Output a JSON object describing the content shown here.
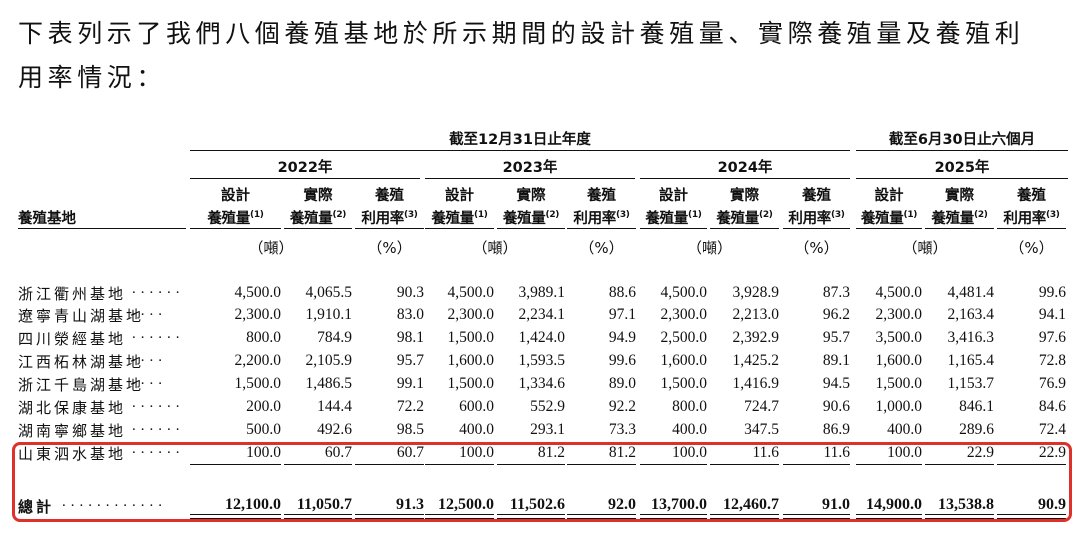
{
  "intro": {
    "line1": "下表列示了我們八個養殖基地於所示期間的設計養殖量、實際養殖量及養殖利",
    "line2": "用率情況："
  },
  "table": {
    "super_header_years": "截至12月31日止年度",
    "super_header_six_months": "截至6月30日止六個月",
    "years": [
      "2022年",
      "2023年",
      "2024年",
      "2025年"
    ],
    "base_header": "養殖基地",
    "sub_headers": {
      "design_top": "設計",
      "design_bottom": "養殖量",
      "design_note": "(1)",
      "actual_top": "實際",
      "actual_bottom": "養殖量",
      "actual_note": "(2)",
      "util_top": "養殖",
      "util_bottom": "利用率",
      "util_note": "(3)"
    },
    "units": {
      "tons": "（噸）",
      "pct": "（%）"
    },
    "rows": [
      {
        "name": "浙江衢州基地",
        "dots": "......",
        "v": [
          "4,500.0",
          "4,065.5",
          "90.3",
          "4,500.0",
          "3,989.1",
          "88.6",
          "4,500.0",
          "3,928.9",
          "87.3",
          "4,500.0",
          "4,481.4",
          "99.6"
        ]
      },
      {
        "name": "遼寧青山湖基地",
        "dots": "....",
        "v": [
          "2,300.0",
          "1,910.1",
          "83.0",
          "2,300.0",
          "2,234.1",
          "97.1",
          "2,300.0",
          "2,213.0",
          "96.2",
          "2,300.0",
          "2,163.4",
          "94.1"
        ]
      },
      {
        "name": "四川滎經基地",
        "dots": "......",
        "v": [
          "800.0",
          "784.9",
          "98.1",
          "1,500.0",
          "1,424.0",
          "94.9",
          "2,500.0",
          "2,392.9",
          "95.7",
          "3,500.0",
          "3,416.3",
          "97.6"
        ]
      },
      {
        "name": "江西柘林湖基地",
        "dots": "....",
        "v": [
          "2,200.0",
          "2,105.9",
          "95.7",
          "1,600.0",
          "1,593.5",
          "99.6",
          "1,600.0",
          "1,425.2",
          "89.1",
          "1,600.0",
          "1,165.4",
          "72.8"
        ]
      },
      {
        "name": "浙江千島湖基地",
        "dots": "....",
        "v": [
          "1,500.0",
          "1,486.5",
          "99.1",
          "1,500.0",
          "1,334.6",
          "89.0",
          "1,500.0",
          "1,416.9",
          "94.5",
          "1,500.0",
          "1,153.7",
          "76.9"
        ]
      },
      {
        "name": "湖北保康基地",
        "dots": "......",
        "v": [
          "200.0",
          "144.4",
          "72.2",
          "600.0",
          "552.9",
          "92.2",
          "800.0",
          "724.7",
          "90.6",
          "1,000.0",
          "846.1",
          "84.6"
        ]
      },
      {
        "name": "湖南寧鄉基地",
        "dots": "......",
        "v": [
          "500.0",
          "492.6",
          "98.5",
          "400.0",
          "293.1",
          "73.3",
          "400.0",
          "347.5",
          "86.9",
          "400.0",
          "289.6",
          "72.4"
        ]
      },
      {
        "name": "山東泗水基地",
        "dots": "......",
        "v": [
          "100.0",
          "60.7",
          "60.7",
          "100.0",
          "81.2",
          "81.2",
          "100.0",
          "11.6",
          "11.6",
          "100.0",
          "22.9",
          "22.9"
        ]
      }
    ],
    "total": {
      "name": "總計",
      "dots": "............",
      "v": [
        "12,100.0",
        "11,050.7",
        "91.3",
        "12,500.0",
        "11,502.6",
        "92.0",
        "13,700.0",
        "12,460.7",
        "91.0",
        "14,900.0",
        "13,538.8",
        "90.9"
      ]
    }
  },
  "highlight_color": "#e0302a"
}
